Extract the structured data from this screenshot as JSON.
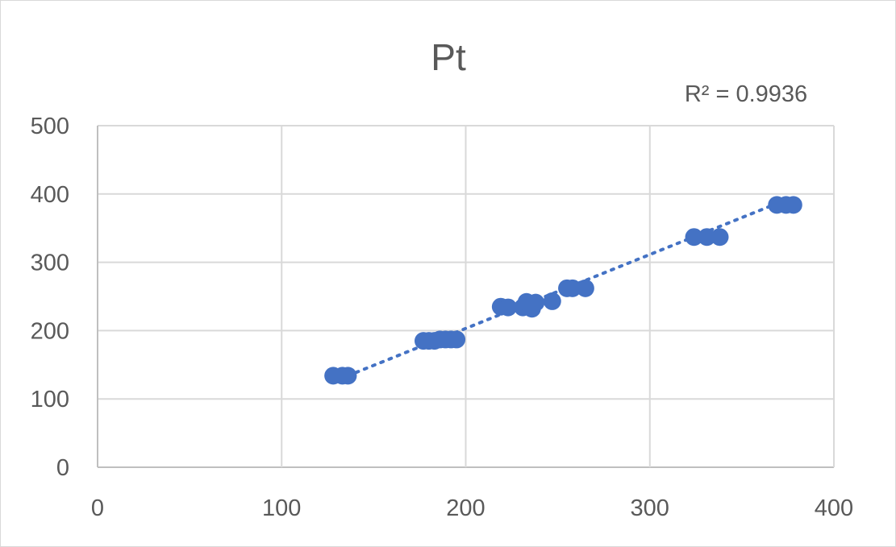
{
  "chart_data": {
    "type": "scatter",
    "title": "Pt",
    "xlabel": "",
    "ylabel": "",
    "xlim": [
      0,
      400
    ],
    "ylim": [
      0,
      500
    ],
    "x_ticks": [
      "0",
      "100",
      "200",
      "300",
      "400"
    ],
    "y_ticks": [
      "0",
      "100",
      "200",
      "300",
      "400",
      "500"
    ],
    "grid": true,
    "series": [
      {
        "color": "#4472c4",
        "points": [
          [
            128,
            134
          ],
          [
            133,
            134
          ],
          [
            136,
            134
          ],
          [
            177,
            185
          ],
          [
            180,
            185
          ],
          [
            183,
            185
          ],
          [
            186,
            187
          ],
          [
            189,
            187
          ],
          [
            192,
            187
          ],
          [
            195,
            187
          ],
          [
            219,
            235
          ],
          [
            223,
            234
          ],
          [
            231,
            234
          ],
          [
            233,
            242
          ],
          [
            236,
            232
          ],
          [
            238,
            241
          ],
          [
            247,
            243
          ],
          [
            255,
            262
          ],
          [
            258,
            262
          ],
          [
            265,
            262
          ],
          [
            324,
            337
          ],
          [
            331,
            337
          ],
          [
            338,
            337
          ],
          [
            369,
            384
          ],
          [
            374,
            384
          ],
          [
            378,
            384
          ]
        ]
      }
    ],
    "trendline": {
      "type": "linear",
      "style": "dotted",
      "color": "#4472c4",
      "from": [
        136,
        134
      ],
      "to": [
        369,
        386
      ],
      "r_squared_label": "R² = 0.9936"
    }
  }
}
